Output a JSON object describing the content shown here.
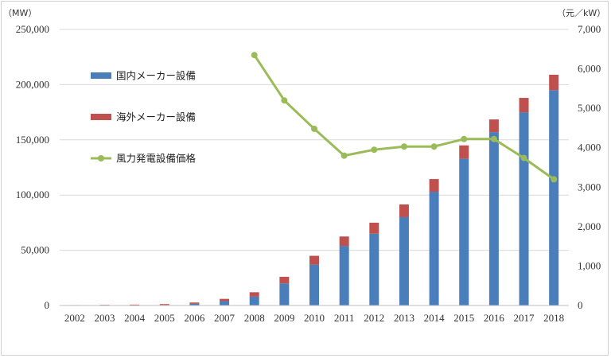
{
  "chart_data": {
    "type": "bar",
    "stacked": true,
    "categories": [
      "2002",
      "2003",
      "2004",
      "2005",
      "2006",
      "2007",
      "2008",
      "2009",
      "2010",
      "2011",
      "2012",
      "2013",
      "2014",
      "2015",
      "2016",
      "2017",
      "2018"
    ],
    "series": [
      {
        "name": "国内メーカー設備",
        "type": "bar",
        "axis": "left",
        "color": "#4a7ebb",
        "values": [
          100,
          200,
          300,
          500,
          1500,
          4000,
          8000,
          20000,
          37000,
          54000,
          65000,
          80000,
          103000,
          133000,
          157000,
          175000,
          195000
        ]
      },
      {
        "name": "海外メーカー設備",
        "type": "bar",
        "axis": "left",
        "color": "#c0504d",
        "values": [
          300,
          400,
          500,
          800,
          1200,
          2000,
          4000,
          6000,
          8000,
          8500,
          10000,
          11500,
          11500,
          12000,
          11500,
          13000,
          14000
        ]
      },
      {
        "name": "風力発電設備価格",
        "type": "line",
        "axis": "right",
        "color": "#9bbb59",
        "values": [
          null,
          null,
          null,
          null,
          null,
          null,
          6350,
          5200,
          4480,
          3800,
          3950,
          4030,
          4030,
          4220,
          4220,
          3740,
          3200
        ]
      }
    ],
    "left_axis": {
      "unit": "（MW）",
      "min": 0,
      "max": 250000,
      "ticks": [
        "0",
        "50,000",
        "100,000",
        "150,000",
        "200,000",
        "250,000"
      ]
    },
    "right_axis": {
      "unit": "（元／kW）",
      "min": 0,
      "max": 7000,
      "ticks": [
        "0",
        "1,000",
        "2,000",
        "3,000",
        "4,000",
        "5,000",
        "6,000",
        "7,000"
      ]
    },
    "grid": true,
    "legend_placement": "top-left-inside"
  }
}
